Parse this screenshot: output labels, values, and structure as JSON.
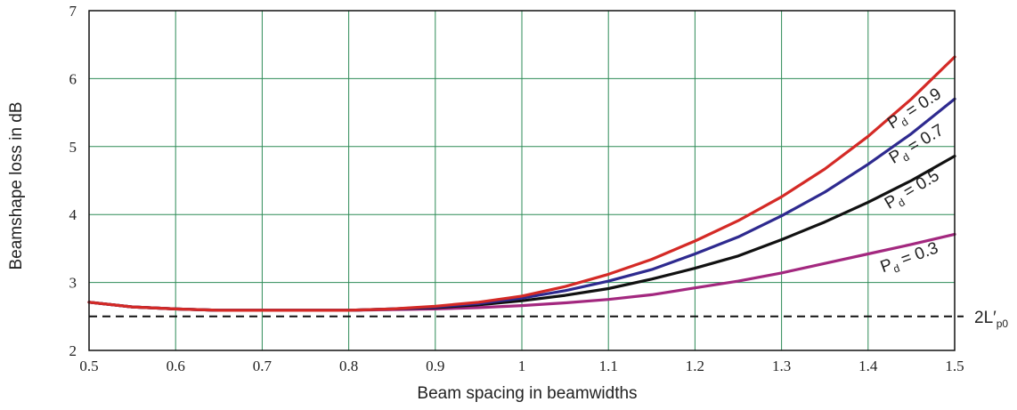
{
  "chart_data": {
    "type": "line",
    "title": "",
    "xlabel": "Beam spacing in beamwidths",
    "ylabel": "Beamshape loss in dB",
    "xlim": [
      0.5,
      1.5
    ],
    "ylim": [
      2,
      7
    ],
    "xticks": [
      0.5,
      0.6,
      0.7,
      0.8,
      0.9,
      1.0,
      1.1,
      1.2,
      1.3,
      1.4,
      1.5
    ],
    "xtick_labels": [
      "0.5",
      "0.6",
      "0.7",
      "0.8",
      "0.9",
      "1",
      "1.1",
      "1.2",
      "1.3",
      "1.4",
      "1.5"
    ],
    "yticks": [
      2,
      3,
      4,
      5,
      6,
      7
    ],
    "ytick_labels": [
      "2",
      "3",
      "4",
      "5",
      "6",
      "7"
    ],
    "grid": true,
    "grid_color": "#2e8b57",
    "x": [
      0.5,
      0.55,
      0.6,
      0.65,
      0.7,
      0.75,
      0.8,
      0.85,
      0.9,
      0.95,
      1.0,
      1.05,
      1.1,
      1.15,
      1.2,
      1.25,
      1.3,
      1.35,
      1.4,
      1.45,
      1.5
    ],
    "series": [
      {
        "label_main": "P",
        "label_sub": "d",
        "label_rest": " = 0.9",
        "color": "#d42a26",
        "values": [
          2.71,
          2.64,
          2.61,
          2.59,
          2.59,
          2.59,
          2.59,
          2.61,
          2.65,
          2.71,
          2.8,
          2.94,
          3.12,
          3.34,
          3.61,
          3.91,
          4.26,
          4.67,
          5.15,
          5.7,
          6.32
        ]
      },
      {
        "label_main": "P",
        "label_sub": "d",
        "label_rest": " = 0.7",
        "color": "#2e2a8f",
        "values": [
          2.71,
          2.64,
          2.61,
          2.59,
          2.59,
          2.59,
          2.59,
          2.61,
          2.64,
          2.69,
          2.77,
          2.88,
          3.02,
          3.19,
          3.42,
          3.67,
          3.98,
          4.33,
          4.74,
          5.19,
          5.7
        ]
      },
      {
        "label_main": "P",
        "label_sub": "d",
        "label_rest": " = 0.5",
        "color": "#111111",
        "values": [
          2.71,
          2.64,
          2.61,
          2.59,
          2.59,
          2.59,
          2.59,
          2.61,
          2.63,
          2.67,
          2.73,
          2.81,
          2.91,
          3.05,
          3.21,
          3.39,
          3.63,
          3.89,
          4.18,
          4.5,
          4.86
        ]
      },
      {
        "label_main": "P",
        "label_sub": "d",
        "label_rest": " = 0.3",
        "color": "#a3287f",
        "values": [
          2.71,
          2.64,
          2.61,
          2.59,
          2.59,
          2.59,
          2.59,
          2.6,
          2.61,
          2.63,
          2.66,
          2.7,
          2.75,
          2.82,
          2.92,
          3.02,
          3.14,
          3.28,
          3.42,
          3.56,
          3.71
        ]
      }
    ],
    "reference_line": {
      "y": 2.5,
      "label_main": "2L′",
      "label_sub": "p0",
      "style": "dashed",
      "color": "#111111"
    }
  }
}
